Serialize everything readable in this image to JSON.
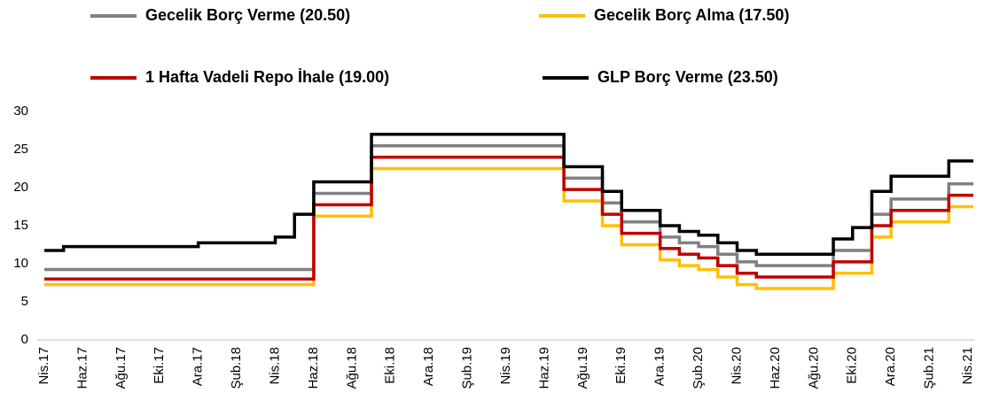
{
  "chart_data": {
    "type": "step",
    "categories": [
      "Nis.17",
      null,
      "Haz.17",
      null,
      "Ağu.17",
      null,
      "Eki.17",
      null,
      "Ara.17",
      null,
      "Şub.18",
      null,
      "Nis.18",
      null,
      "Haz.18",
      null,
      "Ağu.18",
      null,
      "Eki.18",
      null,
      "Ara.18",
      null,
      "Şub.19",
      null,
      "Nis.19",
      null,
      "Haz.19",
      null,
      "Ağu.19",
      null,
      "Eki.19",
      null,
      "Ara.19",
      null,
      "Şub.20",
      null,
      "Nis.20",
      null,
      "Haz.20",
      null,
      "Ağu.20",
      null,
      "Eki.20",
      null,
      "Ara.20",
      null,
      "Şub.21",
      null,
      "Nis.21"
    ],
    "series": [
      {
        "name": "Gecelik Borç Verme (20.50)",
        "color": "#808080",
        "values": [
          9.25,
          9.25,
          9.25,
          9.25,
          9.25,
          9.25,
          9.25,
          9.25,
          9.25,
          9.25,
          9.25,
          9.25,
          9.25,
          9.25,
          19.25,
          19.25,
          19.25,
          25.5,
          25.5,
          25.5,
          25.5,
          25.5,
          25.5,
          25.5,
          25.5,
          25.5,
          25.5,
          21.25,
          21.25,
          18,
          15.5,
          15.5,
          13.5,
          12.75,
          12.25,
          11.25,
          10.25,
          9.75,
          9.75,
          9.75,
          9.75,
          11.75,
          11.75,
          16.5,
          18.5,
          18.5,
          18.5,
          20.5,
          20.5
        ]
      },
      {
        "name": "Gecelik Borç Alma (17.50)",
        "color": "#ffc000",
        "values": [
          7.25,
          7.25,
          7.25,
          7.25,
          7.25,
          7.25,
          7.25,
          7.25,
          7.25,
          7.25,
          7.25,
          7.25,
          7.25,
          7.25,
          16.25,
          16.25,
          16.25,
          22.5,
          22.5,
          22.5,
          22.5,
          22.5,
          22.5,
          22.5,
          22.5,
          22.5,
          22.5,
          18.25,
          18.25,
          15,
          12.5,
          12.5,
          10.5,
          9.75,
          9.25,
          8.25,
          7.25,
          6.75,
          6.75,
          6.75,
          6.75,
          8.75,
          8.75,
          13.5,
          15.5,
          15.5,
          15.5,
          17.5,
          17.5
        ]
      },
      {
        "name": "1 Hafta Vadeli Repo İhale (19.00)",
        "color": "#c00000",
        "values": [
          8,
          8,
          8,
          8,
          8,
          8,
          8,
          8,
          8,
          8,
          8,
          8,
          8,
          8,
          17.75,
          17.75,
          17.75,
          24,
          24,
          24,
          24,
          24,
          24,
          24,
          24,
          24,
          24,
          19.75,
          19.75,
          16.5,
          14,
          14,
          12,
          11.25,
          10.75,
          9.75,
          8.75,
          8.25,
          8.25,
          8.25,
          8.25,
          10.25,
          10.25,
          15,
          17,
          17,
          17,
          19,
          19
        ]
      },
      {
        "name": "GLP Borç Verme (23.50)",
        "color": "#000000",
        "values": [
          11.75,
          12.25,
          12.25,
          12.25,
          12.25,
          12.25,
          12.25,
          12.25,
          12.75,
          12.75,
          12.75,
          12.75,
          13.5,
          16.5,
          20.75,
          20.75,
          20.75,
          27,
          27,
          27,
          27,
          27,
          27,
          27,
          27,
          27,
          27,
          22.75,
          22.75,
          19.5,
          17,
          17,
          15,
          14.25,
          13.75,
          12.75,
          11.75,
          11.25,
          11.25,
          11.25,
          11.25,
          13.25,
          14.75,
          19.5,
          21.5,
          21.5,
          21.5,
          23.5,
          23.5
        ]
      }
    ],
    "ylim": [
      0,
      30
    ],
    "yticks": [
      0,
      5,
      10,
      15,
      20,
      25,
      30
    ],
    "grid": false
  }
}
